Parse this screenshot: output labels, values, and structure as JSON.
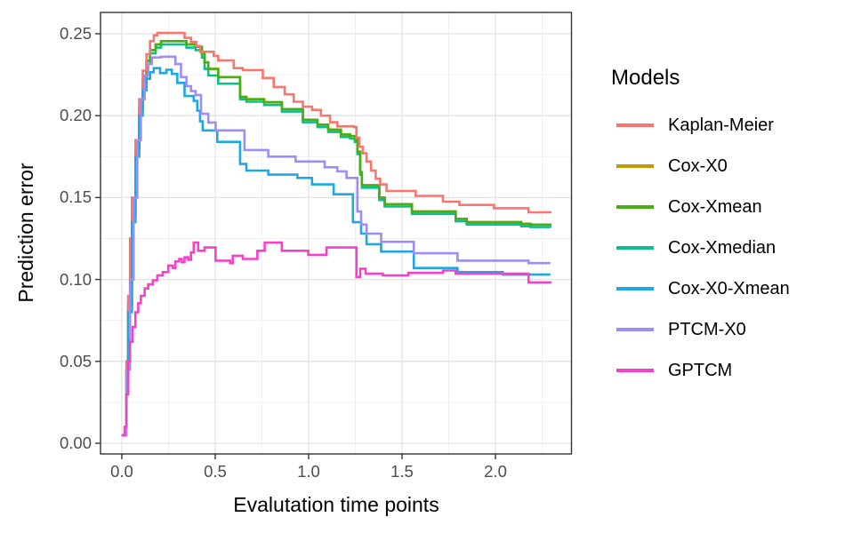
{
  "chart_data": {
    "type": "line",
    "step": "hv",
    "title": "",
    "xlabel": "Evalutation time points",
    "ylabel": "Prediction error",
    "legend_title": "Models",
    "legend_position": "right",
    "grid": true,
    "xlim": [
      -0.114,
      2.407
    ],
    "ylim": [
      -0.0065,
      0.263
    ],
    "x_ticks": [
      0.0,
      0.5,
      1.0,
      1.5,
      2.0
    ],
    "x_tick_labels": [
      "0.0",
      "0.5",
      "1.0",
      "1.5",
      "2.0"
    ],
    "x_minor_ticks": [
      0.25,
      0.75,
      1.25,
      1.75,
      2.25
    ],
    "y_ticks": [
      0.0,
      0.05,
      0.1,
      0.15,
      0.2,
      0.25
    ],
    "y_tick_labels": [
      "0.00",
      "0.05",
      "0.10",
      "0.15",
      "0.20",
      "0.25"
    ],
    "y_minor_ticks": [
      0.025,
      0.075,
      0.125,
      0.175,
      0.225
    ],
    "draw_order": [
      "Cox-X0",
      "Cox-Xmedian",
      "Cox-Xmean",
      "Kaplan-Meier",
      "Cox-X0-Xmean",
      "PTCM-X0",
      "GPTCM"
    ],
    "series": [
      {
        "name": "Kaplan-Meier",
        "color": "#f8766d",
        "points": [
          [
            0.0,
            0.005
          ],
          [
            0.015,
            0.005
          ],
          [
            0.025,
            0.05
          ],
          [
            0.034,
            0.09
          ],
          [
            0.044,
            0.125
          ],
          [
            0.054,
            0.15
          ],
          [
            0.073,
            0.185
          ],
          [
            0.093,
            0.21
          ],
          [
            0.112,
            0.2275
          ],
          [
            0.132,
            0.2375
          ],
          [
            0.151,
            0.2455
          ],
          [
            0.171,
            0.249
          ],
          [
            0.19,
            0.2505
          ],
          [
            0.321,
            0.2505
          ],
          [
            0.336,
            0.2475
          ],
          [
            0.37,
            0.245
          ],
          [
            0.399,
            0.2425
          ],
          [
            0.419,
            0.239
          ],
          [
            0.492,
            0.2365
          ],
          [
            0.516,
            0.2337
          ],
          [
            0.599,
            0.229
          ],
          [
            0.648,
            0.2278
          ],
          [
            0.755,
            0.223
          ],
          [
            0.813,
            0.2175
          ],
          [
            0.872,
            0.213
          ],
          [
            0.92,
            0.2085
          ],
          [
            0.969,
            0.2055
          ],
          [
            1.018,
            0.2035
          ],
          [
            1.066,
            0.2
          ],
          [
            1.115,
            0.196
          ],
          [
            1.154,
            0.1935
          ],
          [
            1.242,
            0.193
          ],
          [
            1.256,
            0.1865
          ],
          [
            1.271,
            0.181
          ],
          [
            1.29,
            0.177
          ],
          [
            1.31,
            0.172
          ],
          [
            1.334,
            0.1665
          ],
          [
            1.359,
            0.1615
          ],
          [
            1.383,
            0.158
          ],
          [
            1.417,
            0.154
          ],
          [
            1.573,
            0.151
          ],
          [
            1.719,
            0.1475
          ],
          [
            1.807,
            0.1455
          ],
          [
            1.992,
            0.1435
          ],
          [
            2.177,
            0.141
          ],
          [
            2.294,
            0.1405
          ]
        ]
      },
      {
        "name": "Cox-X0",
        "color": "#c49a00",
        "points": [
          [
            0.0,
            0.005
          ],
          [
            0.015,
            0.005
          ],
          [
            0.025,
            0.045
          ],
          [
            0.034,
            0.085
          ],
          [
            0.054,
            0.14
          ],
          [
            0.073,
            0.18
          ],
          [
            0.093,
            0.205
          ],
          [
            0.112,
            0.2225
          ],
          [
            0.132,
            0.2335
          ],
          [
            0.151,
            0.24
          ],
          [
            0.181,
            0.2435
          ],
          [
            0.21,
            0.2455
          ],
          [
            0.331,
            0.2455
          ],
          [
            0.346,
            0.2435
          ],
          [
            0.395,
            0.242
          ],
          [
            0.429,
            0.238
          ],
          [
            0.443,
            0.2325
          ],
          [
            0.463,
            0.2285
          ],
          [
            0.516,
            0.2235
          ],
          [
            0.633,
            0.2115
          ],
          [
            0.667,
            0.21
          ],
          [
            0.762,
            0.2082
          ],
          [
            0.857,
            0.204
          ],
          [
            0.969,
            0.1975
          ],
          [
            1.047,
            0.1945
          ],
          [
            1.105,
            0.1915
          ],
          [
            1.173,
            0.1885
          ],
          [
            1.222,
            0.1875
          ],
          [
            1.247,
            0.1855
          ],
          [
            1.261,
            0.178
          ],
          [
            1.276,
            0.1655
          ],
          [
            1.285,
            0.1575
          ],
          [
            1.359,
            0.1575
          ],
          [
            1.378,
            0.15
          ],
          [
            1.407,
            0.146
          ],
          [
            1.553,
            0.1415
          ],
          [
            1.787,
            0.137
          ],
          [
            1.846,
            0.135
          ],
          [
            2.138,
            0.134
          ],
          [
            2.187,
            0.1335
          ],
          [
            2.294,
            0.133
          ]
        ]
      },
      {
        "name": "Cox-Xmean",
        "color": "#4aad15",
        "points": [
          [
            0.0,
            0.005
          ],
          [
            0.015,
            0.005
          ],
          [
            0.025,
            0.045
          ],
          [
            0.034,
            0.085
          ],
          [
            0.054,
            0.14
          ],
          [
            0.073,
            0.18
          ],
          [
            0.093,
            0.205
          ],
          [
            0.112,
            0.2225
          ],
          [
            0.132,
            0.2335
          ],
          [
            0.151,
            0.24
          ],
          [
            0.181,
            0.2435
          ],
          [
            0.21,
            0.2455
          ],
          [
            0.331,
            0.2455
          ],
          [
            0.346,
            0.2435
          ],
          [
            0.395,
            0.242
          ],
          [
            0.429,
            0.238
          ],
          [
            0.443,
            0.2325
          ],
          [
            0.463,
            0.2285
          ],
          [
            0.516,
            0.2235
          ],
          [
            0.633,
            0.2115
          ],
          [
            0.667,
            0.21
          ],
          [
            0.762,
            0.2082
          ],
          [
            0.857,
            0.204
          ],
          [
            0.969,
            0.1975
          ],
          [
            1.047,
            0.1945
          ],
          [
            1.105,
            0.1915
          ],
          [
            1.173,
            0.1885
          ],
          [
            1.222,
            0.1875
          ],
          [
            1.247,
            0.1855
          ],
          [
            1.261,
            0.178
          ],
          [
            1.276,
            0.1655
          ],
          [
            1.285,
            0.1575
          ],
          [
            1.359,
            0.1575
          ],
          [
            1.378,
            0.15
          ],
          [
            1.407,
            0.146
          ],
          [
            1.553,
            0.1415
          ],
          [
            1.787,
            0.137
          ],
          [
            1.846,
            0.135
          ],
          [
            2.138,
            0.134
          ],
          [
            2.187,
            0.1335
          ],
          [
            2.294,
            0.133
          ]
        ]
      },
      {
        "name": "Cox-Xmedian",
        "color": "#0ac08d",
        "points": [
          [
            0.0,
            0.005
          ],
          [
            0.015,
            0.005
          ],
          [
            0.025,
            0.043
          ],
          [
            0.034,
            0.083
          ],
          [
            0.054,
            0.138
          ],
          [
            0.073,
            0.178
          ],
          [
            0.093,
            0.203
          ],
          [
            0.112,
            0.2205
          ],
          [
            0.132,
            0.2315
          ],
          [
            0.151,
            0.238
          ],
          [
            0.181,
            0.2415
          ],
          [
            0.21,
            0.2435
          ],
          [
            0.331,
            0.2435
          ],
          [
            0.346,
            0.2415
          ],
          [
            0.395,
            0.24
          ],
          [
            0.429,
            0.2355
          ],
          [
            0.443,
            0.2285
          ],
          [
            0.463,
            0.2245
          ],
          [
            0.516,
            0.2195
          ],
          [
            0.633,
            0.21
          ],
          [
            0.667,
            0.2085
          ],
          [
            0.762,
            0.2065
          ],
          [
            0.857,
            0.2025
          ],
          [
            0.969,
            0.196
          ],
          [
            1.047,
            0.193
          ],
          [
            1.105,
            0.19
          ],
          [
            1.173,
            0.187
          ],
          [
            1.222,
            0.186
          ],
          [
            1.247,
            0.184
          ],
          [
            1.261,
            0.1765
          ],
          [
            1.276,
            0.164
          ],
          [
            1.285,
            0.156
          ],
          [
            1.359,
            0.156
          ],
          [
            1.378,
            0.1485
          ],
          [
            1.407,
            0.1445
          ],
          [
            1.553,
            0.14
          ],
          [
            1.787,
            0.1355
          ],
          [
            1.846,
            0.1335
          ],
          [
            2.138,
            0.1325
          ],
          [
            2.187,
            0.132
          ],
          [
            2.294,
            0.1315
          ]
        ]
      },
      {
        "name": "Cox-X0-Xmean",
        "color": "#1fa7e4",
        "points": [
          [
            0.0,
            0.005
          ],
          [
            0.015,
            0.005
          ],
          [
            0.025,
            0.04
          ],
          [
            0.034,
            0.08
          ],
          [
            0.054,
            0.135
          ],
          [
            0.073,
            0.175
          ],
          [
            0.093,
            0.2
          ],
          [
            0.112,
            0.2155
          ],
          [
            0.132,
            0.2225
          ],
          [
            0.151,
            0.2265
          ],
          [
            0.171,
            0.229
          ],
          [
            0.205,
            0.226
          ],
          [
            0.239,
            0.228
          ],
          [
            0.268,
            0.2255
          ],
          [
            0.297,
            0.22
          ],
          [
            0.336,
            0.212
          ],
          [
            0.385,
            0.209
          ],
          [
            0.404,
            0.203
          ],
          [
            0.419,
            0.1965
          ],
          [
            0.433,
            0.191
          ],
          [
            0.511,
            0.184
          ],
          [
            0.633,
            0.1705
          ],
          [
            0.667,
            0.1665
          ],
          [
            0.784,
            0.164
          ],
          [
            0.94,
            0.162
          ],
          [
            1.018,
            0.158
          ],
          [
            1.134,
            0.152
          ],
          [
            1.237,
            0.135
          ],
          [
            1.281,
            0.128
          ],
          [
            1.31,
            0.1215
          ],
          [
            1.388,
            0.117
          ],
          [
            1.563,
            0.107
          ],
          [
            1.797,
            0.1045
          ],
          [
            2.04,
            0.103
          ],
          [
            2.294,
            0.103
          ]
        ]
      },
      {
        "name": "PTCM-X0",
        "color": "#9f8cf5",
        "points": [
          [
            0.0,
            0.005
          ],
          [
            0.015,
            0.005
          ],
          [
            0.025,
            0.045
          ],
          [
            0.044,
            0.1
          ],
          [
            0.063,
            0.15
          ],
          [
            0.083,
            0.185
          ],
          [
            0.102,
            0.21
          ],
          [
            0.122,
            0.2245
          ],
          [
            0.141,
            0.2315
          ],
          [
            0.161,
            0.2355
          ],
          [
            0.21,
            0.236
          ],
          [
            0.287,
            0.2315
          ],
          [
            0.317,
            0.2235
          ],
          [
            0.346,
            0.218
          ],
          [
            0.37,
            0.215
          ],
          [
            0.395,
            0.2125
          ],
          [
            0.424,
            0.2012
          ],
          [
            0.463,
            0.1958
          ],
          [
            0.502,
            0.191
          ],
          [
            0.657,
            0.179
          ],
          [
            0.784,
            0.175
          ],
          [
            0.93,
            0.172
          ],
          [
            1.086,
            0.1685
          ],
          [
            1.154,
            0.166
          ],
          [
            1.203,
            0.162
          ],
          [
            1.261,
            0.1415
          ],
          [
            1.281,
            0.1335
          ],
          [
            1.31,
            0.128
          ],
          [
            1.388,
            0.123
          ],
          [
            1.563,
            0.116
          ],
          [
            1.797,
            0.1115
          ],
          [
            2.177,
            0.11
          ],
          [
            2.294,
            0.11
          ]
        ]
      },
      {
        "name": "GPTCM",
        "color": "#f640c8",
        "points": [
          [
            0.0,
            0.005
          ],
          [
            0.015,
            0.01
          ],
          [
            0.025,
            0.03
          ],
          [
            0.034,
            0.05
          ],
          [
            0.044,
            0.062
          ],
          [
            0.058,
            0.071
          ],
          [
            0.073,
            0.08
          ],
          [
            0.088,
            0.0855
          ],
          [
            0.102,
            0.09
          ],
          [
            0.122,
            0.0945
          ],
          [
            0.141,
            0.097
          ],
          [
            0.166,
            0.0995
          ],
          [
            0.19,
            0.1025
          ],
          [
            0.219,
            0.1045
          ],
          [
            0.249,
            0.1085
          ],
          [
            0.273,
            0.107
          ],
          [
            0.287,
            0.111
          ],
          [
            0.307,
            0.1125
          ],
          [
            0.321,
            0.1105
          ],
          [
            0.336,
            0.1135
          ],
          [
            0.356,
            0.112
          ],
          [
            0.37,
            0.1165
          ],
          [
            0.385,
            0.1225
          ],
          [
            0.409,
            0.1175
          ],
          [
            0.443,
            0.1195
          ],
          [
            0.502,
            0.1115
          ],
          [
            0.58,
            0.11
          ],
          [
            0.594,
            0.1145
          ],
          [
            0.648,
            0.1125
          ],
          [
            0.726,
            0.1175
          ],
          [
            0.765,
            0.1225
          ],
          [
            0.857,
            0.1175
          ],
          [
            0.998,
            0.115
          ],
          [
            1.096,
            0.1195
          ],
          [
            1.256,
            0.1015
          ],
          [
            1.276,
            0.1065
          ],
          [
            1.305,
            0.1035
          ],
          [
            1.397,
            0.1025
          ],
          [
            1.534,
            0.104
          ],
          [
            1.719,
            0.1055
          ],
          [
            1.787,
            0.1035
          ],
          [
            2.177,
            0.0982
          ],
          [
            2.294,
            0.0975
          ]
        ]
      }
    ],
    "style": {
      "panel_background": "#ffffff",
      "panel_border": "#333333",
      "grid_major": "#e3e3e3",
      "grid_minor": "#efefef",
      "tick_mark": "#333333",
      "tick_label_color": "#4d4d4d"
    }
  }
}
